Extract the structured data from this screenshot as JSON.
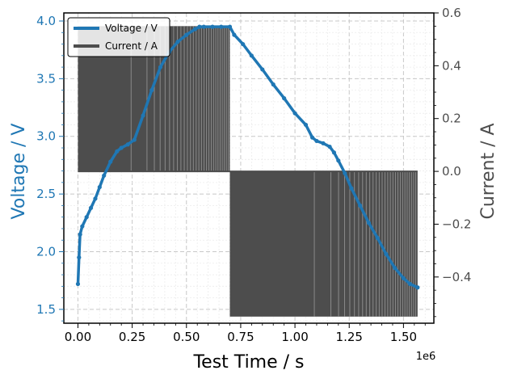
{
  "chart_data": {
    "type": "line",
    "xlabel": "Test Time / s",
    "x_multiplier_label": "1e6",
    "x_scale_factor": 1000000,
    "xlim": [
      -65000,
      1640000
    ],
    "xticks": [
      0,
      250000,
      500000,
      750000,
      1000000,
      1250000,
      1500000
    ],
    "xtick_labels": [
      "0.00",
      "0.25",
      "0.50",
      "0.75",
      "1.00",
      "1.25",
      "1.50"
    ],
    "grid": true,
    "legend_position": "top-left",
    "left_axis": {
      "label": "Voltage / V",
      "color": "#1f77b4",
      "ylim": [
        1.38,
        4.07
      ],
      "ticks": [
        1.5,
        2.0,
        2.5,
        3.0,
        3.5,
        4.0
      ],
      "tick_labels": [
        "1.5",
        "2.0",
        "2.5",
        "3.0",
        "3.5",
        "4.0"
      ]
    },
    "right_axis": {
      "label": "Current / A",
      "color": "#4d4d4d",
      "ylim": [
        -0.575,
        0.6
      ],
      "ticks": [
        -0.4,
        -0.2,
        0.0,
        0.2,
        0.4,
        0.6
      ],
      "tick_labels": [
        "−0.4",
        "−0.2",
        "0.0",
        "0.2",
        "0.4",
        "0.6"
      ]
    },
    "series": [
      {
        "name": "Voltage / V",
        "axis": "left",
        "color": "#1f77b4",
        "x": [
          0,
          5000,
          10000,
          20000,
          40000,
          60000,
          80000,
          100000,
          120000,
          150000,
          180000,
          200000,
          230000,
          260000,
          300000,
          340000,
          380000,
          420000,
          460000,
          500000,
          540000,
          560000,
          580000,
          620000,
          660000,
          700000,
          720000,
          760000,
          800000,
          850000,
          900000,
          950000,
          1000000,
          1050000,
          1080000,
          1100000,
          1130000,
          1160000,
          1180000,
          1200000,
          1230000,
          1260000,
          1300000,
          1340000,
          1380000,
          1420000,
          1460000,
          1500000,
          1530000,
          1565000
        ],
        "y": [
          1.72,
          1.95,
          2.15,
          2.22,
          2.3,
          2.38,
          2.46,
          2.56,
          2.66,
          2.78,
          2.87,
          2.9,
          2.93,
          2.97,
          3.18,
          3.4,
          3.6,
          3.73,
          3.82,
          3.88,
          3.93,
          3.95,
          3.95,
          3.95,
          3.95,
          3.95,
          3.88,
          3.8,
          3.7,
          3.58,
          3.45,
          3.33,
          3.2,
          3.1,
          2.99,
          2.96,
          2.94,
          2.91,
          2.86,
          2.79,
          2.68,
          2.55,
          2.4,
          2.25,
          2.12,
          1.98,
          1.86,
          1.77,
          1.72,
          1.69
        ]
      },
      {
        "name": "Current / A",
        "axis": "right",
        "color": "#4d4d4d",
        "charge_phase": {
          "start": 0,
          "end": 700000,
          "high": 0.55,
          "low": 0.0
        },
        "discharge_phase": {
          "start": 700000,
          "end": 1565000,
          "high": 0.0,
          "low": -0.55
        }
      }
    ]
  }
}
